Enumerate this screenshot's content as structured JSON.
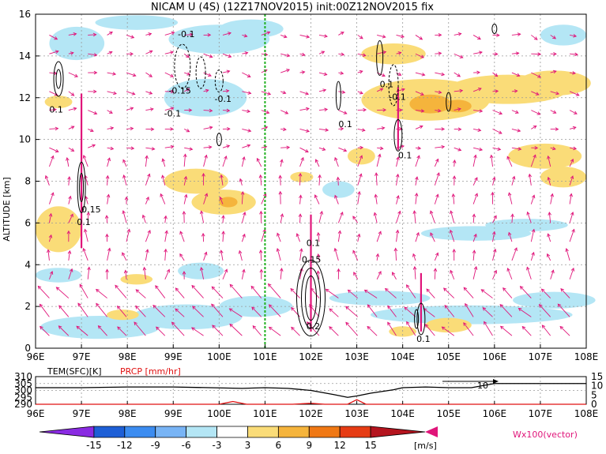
{
  "chart_data": [
    {
      "type": "heatmap",
      "title": "NICAM U (4S) (12Z17NOV2015) init:00Z12NOV2015 fix",
      "ylabel": "ALTITUDE [km]",
      "x_ticks": [
        "96E",
        "97E",
        "98E",
        "99E",
        "100E",
        "101E",
        "102E",
        "103E",
        "104E",
        "105E",
        "106E",
        "107E",
        "108E"
      ],
      "y_ticks": [
        "0",
        "2",
        "4",
        "6",
        "8",
        "10",
        "12",
        "14",
        "16"
      ],
      "xlim": [
        96,
        108
      ],
      "ylim": [
        0,
        16
      ],
      "grid": true,
      "marker_longitude": 101,
      "contour_labels": [
        {
          "text": "0.1",
          "lon": 96.3,
          "alt": 11.3
        },
        {
          "text": "-0.1",
          "lon": 99.1,
          "alt": 14.9
        },
        {
          "text": "-0.15",
          "lon": 98.9,
          "alt": 12.2
        },
        {
          "text": "-0.1",
          "lon": 98.8,
          "alt": 11.1
        },
        {
          "text": "-0.1",
          "lon": 99.9,
          "alt": 11.8
        },
        {
          "text": "0.1",
          "lon": 102.6,
          "alt": 10.6
        },
        {
          "text": "0.1",
          "lon": 103.5,
          "alt": 12.5
        },
        {
          "text": "-0.1",
          "lon": 103.7,
          "alt": 11.9
        },
        {
          "text": "0.1",
          "lon": 103.9,
          "alt": 9.1
        },
        {
          "text": "0.15",
          "lon": 97.0,
          "alt": 6.5
        },
        {
          "text": "0.1",
          "lon": 96.9,
          "alt": 5.9
        },
        {
          "text": "0.1",
          "lon": 101.9,
          "alt": 4.9
        },
        {
          "text": "0.15",
          "lon": 101.8,
          "alt": 4.1
        },
        {
          "text": "0.2",
          "lon": 101.9,
          "alt": 0.9
        },
        {
          "text": "0.1",
          "lon": 104.3,
          "alt": 0.3
        }
      ]
    },
    {
      "type": "line",
      "left_label": "TEM(SFC)[K]",
      "right_label": "PRCP [mm/hr]",
      "left_ticks": [
        "310",
        "305",
        "300",
        "295",
        "290"
      ],
      "right_ticks": [
        "15",
        "10",
        "5",
        "0"
      ],
      "temperature_series": {
        "lon": [
          96,
          97,
          98,
          99,
          99.8,
          100.5,
          101,
          101.5,
          102,
          102.5,
          102.8,
          103,
          103.3,
          103.8,
          104,
          104.5,
          105,
          105.5,
          106,
          106.5,
          107,
          108
        ],
        "values": [
          302,
          302,
          302.5,
          302.5,
          302,
          301.5,
          302,
          301.5,
          300,
          297,
          295,
          296,
          298,
          300.5,
          302,
          302.5,
          302,
          302,
          305,
          305,
          305,
          305
        ]
      },
      "precip_series": {
        "lon": [
          96,
          99.8,
          100,
          100.3,
          100.6,
          101,
          101.6,
          102,
          102.3,
          102.8,
          103,
          103.2,
          103.5,
          108
        ],
        "values": [
          0,
          0,
          0,
          1.5,
          0,
          0,
          0,
          0.5,
          0,
          0,
          2.5,
          0,
          0,
          0
        ]
      },
      "annotation": "10",
      "x_ticks": [
        "96E",
        "97E",
        "98E",
        "99E",
        "100E",
        "101E",
        "102E",
        "103E",
        "104E",
        "105E",
        "106E",
        "107E",
        "108E"
      ]
    },
    {
      "type": "colorbar",
      "labels": [
        "-15",
        "-12",
        "-9",
        "-6",
        "-3",
        "3",
        "6",
        "9",
        "12",
        "15"
      ],
      "colors": [
        "#8a2be2",
        "#1e5fd6",
        "#3c8cf0",
        "#78b4f5",
        "#b4e6f5",
        "#ffffff",
        "#fadc78",
        "#f5b43c",
        "#f07814",
        "#e63c14",
        "#b4141e"
      ],
      "units": "[m/s]",
      "vector_label": "Wx100(vector)"
    }
  ]
}
